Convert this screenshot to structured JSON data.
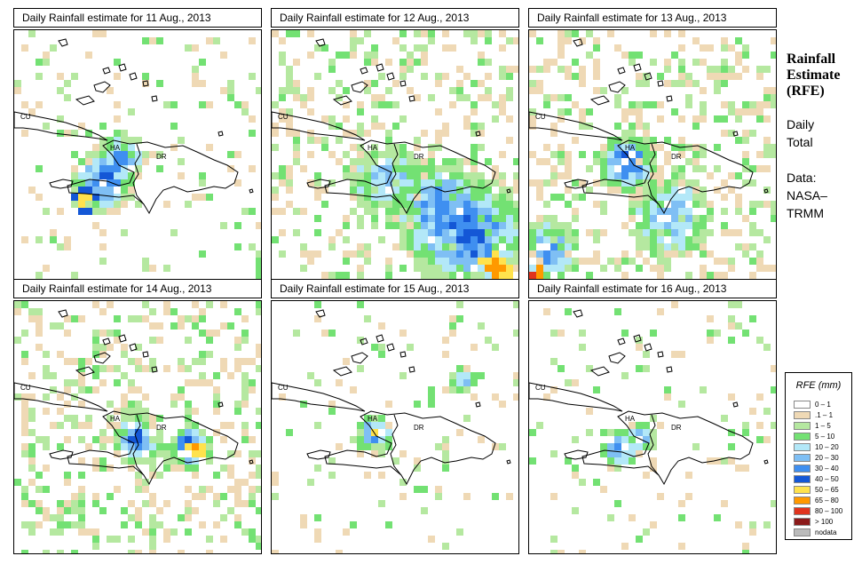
{
  "panels": [
    {
      "title": "Daily Rainfall estimate for  11 Aug., 2013"
    },
    {
      "title": "Daily Rainfall estimate for  12 Aug., 2013"
    },
    {
      "title": "Daily Rainfall estimate for  13 Aug., 2013"
    },
    {
      "title": "Daily Rainfall estimate for  14 Aug., 2013"
    },
    {
      "title": "Daily Rainfall estimate for  15 Aug., 2013"
    },
    {
      "title": "Daily Rainfall estimate for  16 Aug., 2013"
    }
  ],
  "map_labels": {
    "cuba": "CU",
    "haiti": "HA",
    "dr": "DR"
  },
  "side": {
    "title_line1": "Rainfall",
    "title_line2": "Estimate",
    "title_line3": "(RFE)",
    "period_line1": "Daily",
    "period_line2": "Total",
    "source_line1": "Data:",
    "source_line2": "NASA–",
    "source_line3": "TRMM"
  },
  "legend": {
    "title": "RFE (mm)",
    "items": [
      {
        "label": "0 – 1",
        "color": "#ffffff"
      },
      {
        "label": ".1 – 1",
        "color": "#efd9b5"
      },
      {
        "label": "1 – 5",
        "color": "#b5e8a0"
      },
      {
        "label": "5 – 10",
        "color": "#73e173"
      },
      {
        "label": "10 – 20",
        "color": "#b3e8f8"
      },
      {
        "label": "20 – 30",
        "color": "#7fbff4"
      },
      {
        "label": "30 – 40",
        "color": "#3f8ff0"
      },
      {
        "label": "40 – 50",
        "color": "#1457d6"
      },
      {
        "label": "50 – 65",
        "color": "#ffe24d"
      },
      {
        "label": "65 – 80",
        "color": "#ff9900"
      },
      {
        "label": "80 – 100",
        "color": "#e0341e"
      },
      {
        "label": "> 100",
        "color": "#8b1a1a"
      },
      {
        "label": "nodata",
        "color": "#bbbbbb"
      }
    ]
  }
}
